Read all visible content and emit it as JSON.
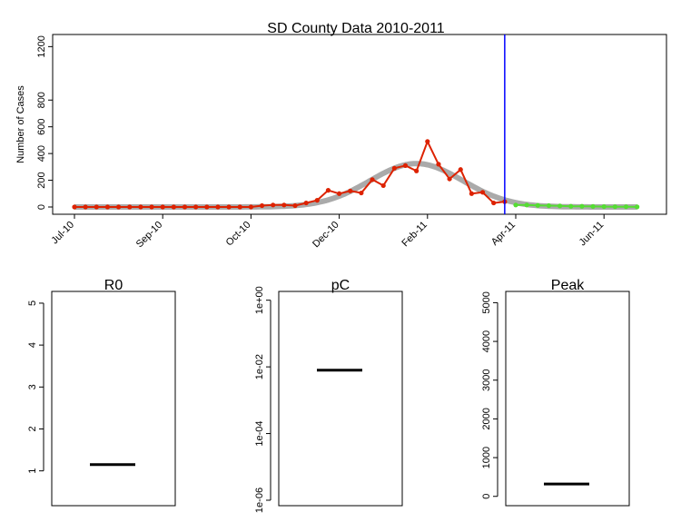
{
  "chart_data": [
    {
      "type": "line",
      "title": "SD County Data 2010-2011",
      "ylabel": "Number of Cases",
      "xlabel": "",
      "ylim": [
        0,
        1250
      ],
      "yticks": [
        0,
        200,
        400,
        600,
        800,
        1200
      ],
      "x_tick_labels": [
        "Jul-10",
        "Sep-10",
        "Oct-10",
        "Dec-10",
        "Feb-11",
        "Apr-11",
        "Jun-11"
      ],
      "x_tick_weeks": [
        0,
        8,
        16,
        24,
        32,
        40,
        48
      ],
      "vline_week": 39,
      "vline_color": "#0000ff",
      "series": [
        {
          "role": "observed",
          "color": "#dd2200",
          "x_weeks": [
            0,
            1,
            2,
            3,
            4,
            5,
            6,
            7,
            8,
            9,
            10,
            11,
            12,
            13,
            14,
            15,
            16,
            17,
            18,
            19,
            20,
            21,
            22,
            23,
            24,
            25,
            26,
            27,
            28,
            29,
            30,
            31,
            32,
            33,
            34,
            35,
            36,
            37,
            38,
            39
          ],
          "values": [
            0,
            0,
            0,
            0,
            0,
            0,
            0,
            0,
            0,
            0,
            0,
            0,
            0,
            0,
            0,
            0,
            0,
            10,
            15,
            15,
            10,
            30,
            50,
            125,
            100,
            120,
            105,
            205,
            160,
            290,
            310,
            270,
            490,
            320,
            210,
            280,
            100,
            110,
            30,
            40
          ]
        },
        {
          "role": "future",
          "color": "#55dd33",
          "x_weeks": [
            40,
            41,
            42,
            43,
            44,
            45,
            46,
            47,
            48,
            49,
            50,
            51
          ],
          "values": [
            15,
            15,
            12,
            10,
            8,
            5,
            5,
            4,
            3,
            2,
            2,
            1
          ]
        }
      ],
      "fit": {
        "color": "#aaaaaa",
        "shape": "gaussian",
        "peak_week": 31,
        "peak_value": 325,
        "sd_weeks": 4.2,
        "x_range_weeks": [
          0,
          51
        ]
      }
    },
    {
      "type": "box",
      "title": "R0",
      "ylim": [
        0.3,
        5.15
      ],
      "yticks": [
        1,
        2,
        3,
        4,
        5
      ],
      "ytick_labels": [
        "1",
        "2",
        "3",
        "4",
        "5"
      ],
      "median": 1.15
    },
    {
      "type": "box",
      "title": "pC",
      "scale": "log10",
      "ylim_log10": [
        -6.0,
        0.1
      ],
      "yticks_log10": [
        -6,
        -4,
        -2,
        0
      ],
      "ytick_labels": [
        "1e-06",
        "1e-04",
        "1e-02",
        "1e+00"
      ],
      "median_log10": -2.1
    },
    {
      "type": "box",
      "title": "Peak",
      "ylim": [
        -100,
        5150
      ],
      "yticks": [
        0,
        1000,
        2000,
        3000,
        4000,
        5000
      ],
      "ytick_labels": [
        "0",
        "1000",
        "2000",
        "3000",
        "4000",
        "5000"
      ],
      "median": 320
    }
  ]
}
